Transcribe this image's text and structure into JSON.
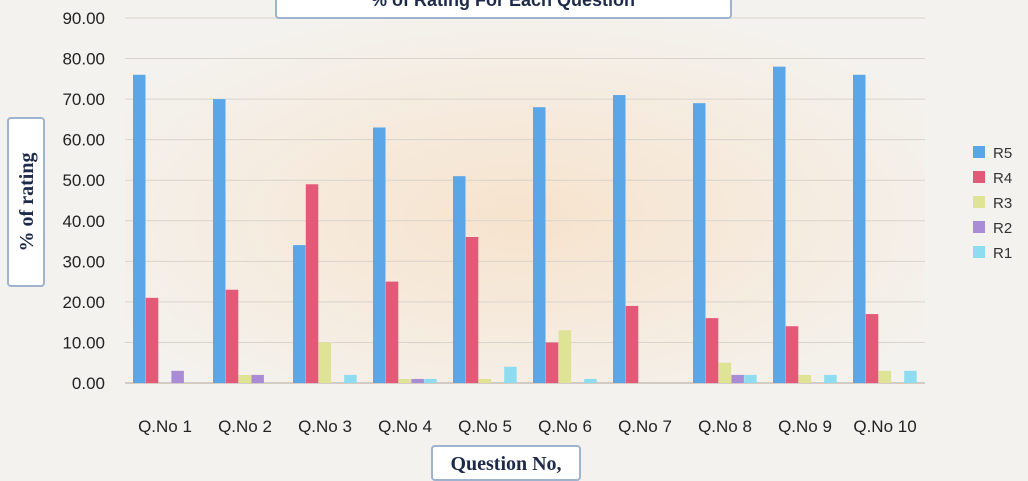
{
  "chart_data": {
    "type": "bar",
    "title": "% of Rating For Each Question",
    "xlabel": "Question No,",
    "ylabel": "% of rating",
    "ylim": [
      0,
      90
    ],
    "yticks": [
      "0.00",
      "10.00",
      "20.00",
      "30.00",
      "40.00",
      "50.00",
      "60.00",
      "70.00",
      "80.00",
      "90.00"
    ],
    "categories": [
      "Q.No 1",
      "Q.No 2",
      "Q.No 3",
      "Q.No 4",
      "Q.No 5",
      "Q.No 6",
      "Q.No 7",
      "Q.No 8",
      "Q.No 9",
      "Q.No 10"
    ],
    "grid": true,
    "legend_position": "right",
    "series": [
      {
        "name": "R5",
        "color": "#5aa6e6",
        "values": [
          76,
          70,
          34,
          63,
          51,
          68,
          71,
          69,
          78,
          76
        ]
      },
      {
        "name": "R4",
        "color": "#e15a78",
        "values": [
          21,
          23,
          49,
          25,
          36,
          10,
          19,
          16,
          14,
          17
        ]
      },
      {
        "name": "R3",
        "color": "#dfe395",
        "values": [
          0,
          2,
          10,
          1,
          1,
          13,
          0,
          5,
          2,
          3
        ]
      },
      {
        "name": "R2",
        "color": "#a98bd6",
        "values": [
          3,
          2,
          0,
          1,
          0,
          0,
          0,
          2,
          0,
          0
        ]
      },
      {
        "name": "R1",
        "color": "#8fdcf0",
        "values": [
          0,
          0,
          2,
          1,
          4,
          1,
          0,
          2,
          2,
          3
        ]
      }
    ]
  }
}
